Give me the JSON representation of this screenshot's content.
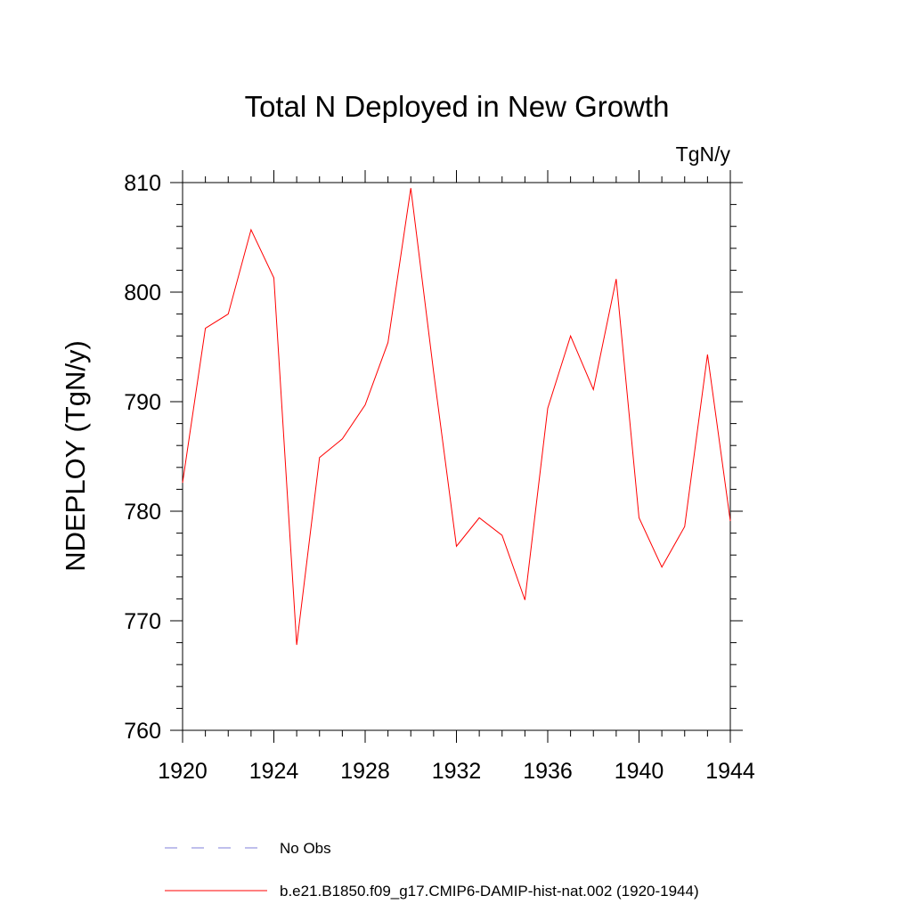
{
  "chart_data": {
    "type": "line",
    "title": "Total N Deployed in New Growth",
    "units_label": "TgN/y",
    "ylabel": "NDEPLOY  (TgN/y)",
    "xlabel": "",
    "xlim": [
      1920,
      1944
    ],
    "ylim": [
      760,
      810
    ],
    "x_ticks": [
      1920,
      1924,
      1928,
      1932,
      1936,
      1940,
      1944
    ],
    "y_ticks": [
      760,
      770,
      780,
      790,
      800,
      810
    ],
    "grid": false,
    "legend_position": "bottom",
    "x": [
      1920,
      1921,
      1922,
      1923,
      1924,
      1925,
      1926,
      1927,
      1928,
      1929,
      1930,
      1931,
      1932,
      1933,
      1934,
      1935,
      1936,
      1937,
      1938,
      1939,
      1940,
      1941,
      1942,
      1943,
      1944
    ],
    "series": [
      {
        "name": "b.e21.B1850.f09_g17.CMIP6-DAMIP-hist-nat.002 (1920-1944)",
        "color": "#ff0000",
        "style": "solid",
        "values": [
          782.6,
          796.7,
          798.0,
          805.7,
          801.3,
          767.8,
          784.9,
          786.6,
          789.7,
          795.4,
          809.5,
          792.7,
          776.8,
          779.4,
          777.8,
          771.9,
          789.4,
          796.0,
          791.1,
          801.2,
          779.4,
          774.9,
          778.6,
          794.3,
          779.1
        ]
      }
    ],
    "legend": [
      {
        "label": "No Obs",
        "color": "#7f7fd8",
        "style": "dashed"
      },
      {
        "label": "b.e21.B1850.f09_g17.CMIP6-DAMIP-hist-nat.002 (1920-1944)",
        "color": "#ff0000",
        "style": "solid"
      }
    ]
  }
}
